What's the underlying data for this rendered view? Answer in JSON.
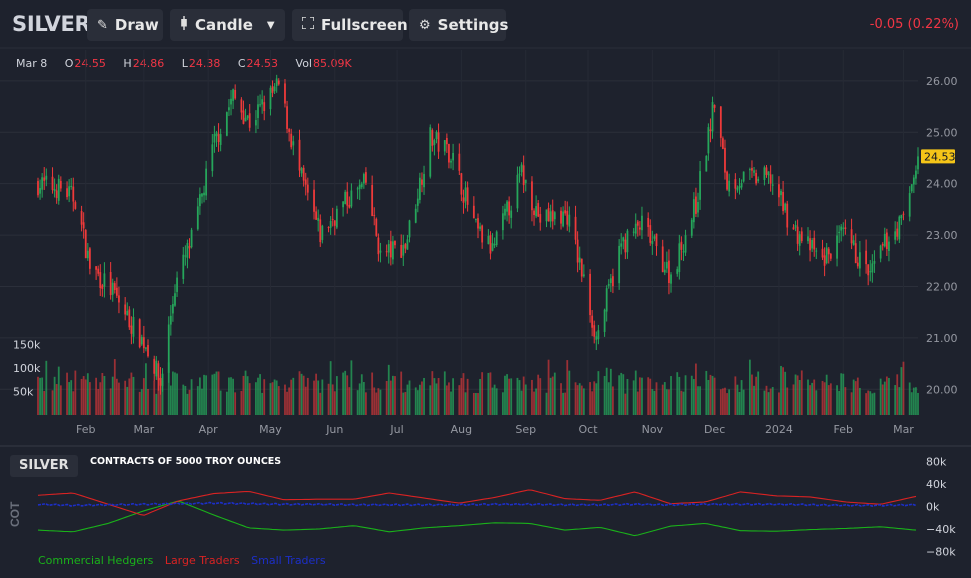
{
  "toolbar": {
    "symbol": "SILVER",
    "draw_label": "Draw",
    "candle_label": "Candle",
    "fullscreen_label": "Fullscreen",
    "settings_label": "Settings",
    "change": "-0.05 (0.22%)"
  },
  "ohlc": {
    "date": "Mar 8",
    "o_key": "O",
    "o": "24.55",
    "h_key": "H",
    "h": "24.86",
    "l_key": "L",
    "l": "24.38",
    "c_key": "C",
    "c": "24.53",
    "vol_key": "Vol",
    "vol": "85.09K"
  },
  "cot": {
    "symbol": "SILVER",
    "subtitle": "CONTRACTS OF 5000 TROY OUNCES",
    "side_label": "COT",
    "legend": [
      "Commercial Hedgers",
      "Large Traders",
      "Small Traders"
    ]
  },
  "colors": {
    "up": "#26a65b",
    "down": "#ef3a3a",
    "commercial": "#1ab21a",
    "large": "#d92323",
    "small": "#1c2fc8",
    "last_price_bg": "#f5c518"
  },
  "chart_data": [
    {
      "type": "candlestick",
      "x_ticks": [
        "Feb",
        "Mar",
        "Apr",
        "May",
        "Jun",
        "Jul",
        "Aug",
        "Sep",
        "Oct",
        "Nov",
        "Dec",
        "2024",
        "Feb",
        "Mar"
      ],
      "y_ticks": [
        "26.00",
        "25.00",
        "24.00",
        "23.00",
        "22.00",
        "21.00",
        "20.00"
      ],
      "ylim": [
        19.5,
        26.6
      ],
      "last_price": "24.53",
      "close_path": [
        [
          "2023-01-09",
          24.0
        ],
        [
          "2023-01-20",
          23.9
        ],
        [
          "2023-01-27",
          23.7
        ],
        [
          "2023-02-03",
          22.4
        ],
        [
          "2023-02-14",
          21.9
        ],
        [
          "2023-02-24",
          21.2
        ],
        [
          "2023-03-03",
          20.8
        ],
        [
          "2023-03-09",
          20.1
        ],
        [
          "2023-03-16",
          22.0
        ],
        [
          "2023-03-24",
          22.9
        ],
        [
          "2023-04-04",
          24.8
        ],
        [
          "2023-04-13",
          25.7
        ],
        [
          "2023-04-21",
          25.2
        ],
        [
          "2023-05-05",
          25.9
        ],
        [
          "2023-05-15",
          24.2
        ],
        [
          "2023-05-25",
          23.0
        ],
        [
          "2023-06-05",
          23.6
        ],
        [
          "2023-06-16",
          24.0
        ],
        [
          "2023-06-23",
          22.6
        ],
        [
          "2023-07-05",
          22.8
        ],
        [
          "2023-07-17",
          24.9
        ],
        [
          "2023-07-27",
          24.6
        ],
        [
          "2023-08-08",
          23.1
        ],
        [
          "2023-08-16",
          22.7
        ],
        [
          "2023-08-30",
          24.2
        ],
        [
          "2023-09-08",
          23.3
        ],
        [
          "2023-09-21",
          23.4
        ],
        [
          "2023-09-29",
          22.1
        ],
        [
          "2023-10-05",
          21.0
        ],
        [
          "2023-10-17",
          22.8
        ],
        [
          "2023-10-27",
          23.2
        ],
        [
          "2023-11-10",
          22.2
        ],
        [
          "2023-11-22",
          23.6
        ],
        [
          "2023-12-01",
          25.6
        ],
        [
          "2023-12-07",
          24.0
        ],
        [
          "2023-12-14",
          24.1
        ],
        [
          "2023-12-28",
          24.1
        ],
        [
          "2024-01-08",
          23.1
        ],
        [
          "2024-01-22",
          22.5
        ],
        [
          "2024-02-01",
          23.0
        ],
        [
          "2024-02-14",
          22.2
        ],
        [
          "2024-02-22",
          22.9
        ],
        [
          "2024-03-01",
          23.3
        ],
        [
          "2024-03-08",
          24.53
        ]
      ]
    },
    {
      "type": "bar",
      "name": "volume",
      "y_ticks": [
        "150k",
        "100k",
        "50k"
      ],
      "ylim": [
        0,
        160
      ]
    },
    {
      "type": "line",
      "title": "CONTRACTS OF 5000 TROY OUNCES",
      "y_ticks": [
        "80k",
        "40k",
        "0k",
        "−40k",
        "−80k"
      ],
      "ylim": [
        -88,
        88
      ],
      "series": [
        {
          "name": "Commercial Hedgers",
          "values": [
            -42,
            -45,
            -30,
            -8,
            10,
            -15,
            -38,
            -42,
            -40,
            -34,
            -45,
            -38,
            -34,
            -29,
            -30,
            -42,
            -37,
            -52,
            -35,
            -30,
            -43,
            -44,
            -41,
            -39,
            -36,
            -42
          ]
        },
        {
          "name": "Large Traders",
          "values": [
            20,
            24,
            4,
            -16,
            10,
            23,
            27,
            12,
            13,
            13,
            24,
            15,
            6,
            16,
            30,
            14,
            11,
            26,
            5,
            8,
            26,
            19,
            17,
            8,
            4,
            18
          ]
        },
        {
          "name": "Small Traders",
          "values": [
            4,
            2,
            3,
            4,
            5,
            6,
            5,
            4,
            4,
            3,
            3,
            3,
            3,
            4,
            4,
            3,
            3,
            4,
            3,
            4,
            4,
            4,
            3,
            2,
            2,
            3
          ]
        }
      ]
    }
  ]
}
